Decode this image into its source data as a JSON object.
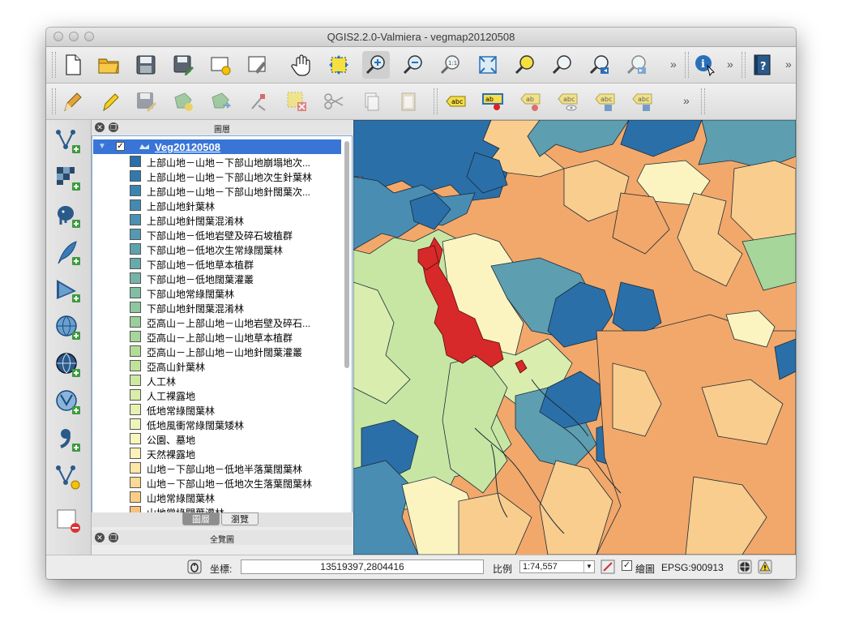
{
  "window": {
    "title": "QGIS2.2.0-Valmiera - vegmap20120508"
  },
  "layers_panel": {
    "title": "圖層",
    "group_name": "Veg20120508",
    "items": [
      {
        "label": "上部山地－山地－下部山地崩塌地次...",
        "color": "#2b6fa8"
      },
      {
        "label": "上部山地－山地－下部山地次生針葉林",
        "color": "#3279ad"
      },
      {
        "label": "上部山地－山地－下部山地針闊葉次...",
        "color": "#3a84b1"
      },
      {
        "label": "上部山地針葉林",
        "color": "#428ab2"
      },
      {
        "label": "上部山地針闊葉混淆林",
        "color": "#4b91b1"
      },
      {
        "label": "下部山地－低地岩壁及碎石坡植群",
        "color": "#5499b1"
      },
      {
        "label": "下部山地－低地次生常綠闊葉林",
        "color": "#5ea2ae"
      },
      {
        "label": "下部山地－低地草本植群",
        "color": "#68aaac"
      },
      {
        "label": "下部山地－低地闊葉灌叢",
        "color": "#74b4a8"
      },
      {
        "label": "下部山地常綠闊葉林",
        "color": "#80bea4"
      },
      {
        "label": "下部山地針闊葉混淆林",
        "color": "#8ec79f"
      },
      {
        "label": "亞高山－上部山地－山地岩壁及碎石...",
        "color": "#9acf9b"
      },
      {
        "label": "亞高山－上部山地－山地草本植群",
        "color": "#a8d69a"
      },
      {
        "label": "亞高山－上部山地－山地針闊葉灌叢",
        "color": "#b4dc99"
      },
      {
        "label": "亞高山針葉林",
        "color": "#c2e29c"
      },
      {
        "label": "人工林",
        "color": "#cfe8a2"
      },
      {
        "label": "人工裸露地",
        "color": "#daeda9"
      },
      {
        "label": "低地常綠闊葉林",
        "color": "#e6f2b2"
      },
      {
        "label": "低地風衝常綠闊葉矮林",
        "color": "#eff5ba"
      },
      {
        "label": "公園、墓地",
        "color": "#f8f6bf"
      },
      {
        "label": "天然裸露地",
        "color": "#fdf2b8"
      },
      {
        "label": "山地－下部山地－低地半落葉闊葉林",
        "color": "#fde6a6"
      },
      {
        "label": "山地－下部山地－低地次生落葉闊葉林",
        "color": "#fcd994"
      },
      {
        "label": "山地常綠闊葉林",
        "color": "#fbcd86"
      },
      {
        "label": "山地常綠闊葉灌林",
        "color": "#f9c27c"
      }
    ],
    "tabs": {
      "layers": "圖層",
      "browse": "瀏覽"
    }
  },
  "overview_panel": {
    "title": "全覽圖"
  },
  "status": {
    "coord_label": "坐標:",
    "coord_value": "13519397,2804416",
    "scale_label": "比例",
    "scale_value": "1:74,557",
    "render_label": "繪圖",
    "crs": "EPSG:900913"
  },
  "colors": {
    "dark_blue": "#2b6fa8",
    "mid_blue": "#4a8db3",
    "teal": "#5d9eb0",
    "light_green": "#c7e6a4",
    "pale_green": "#d9eeae",
    "cream": "#fbf4c0",
    "orange": "#f2a86a",
    "light_orange": "#f9cd8d",
    "red": "#d7292a"
  }
}
